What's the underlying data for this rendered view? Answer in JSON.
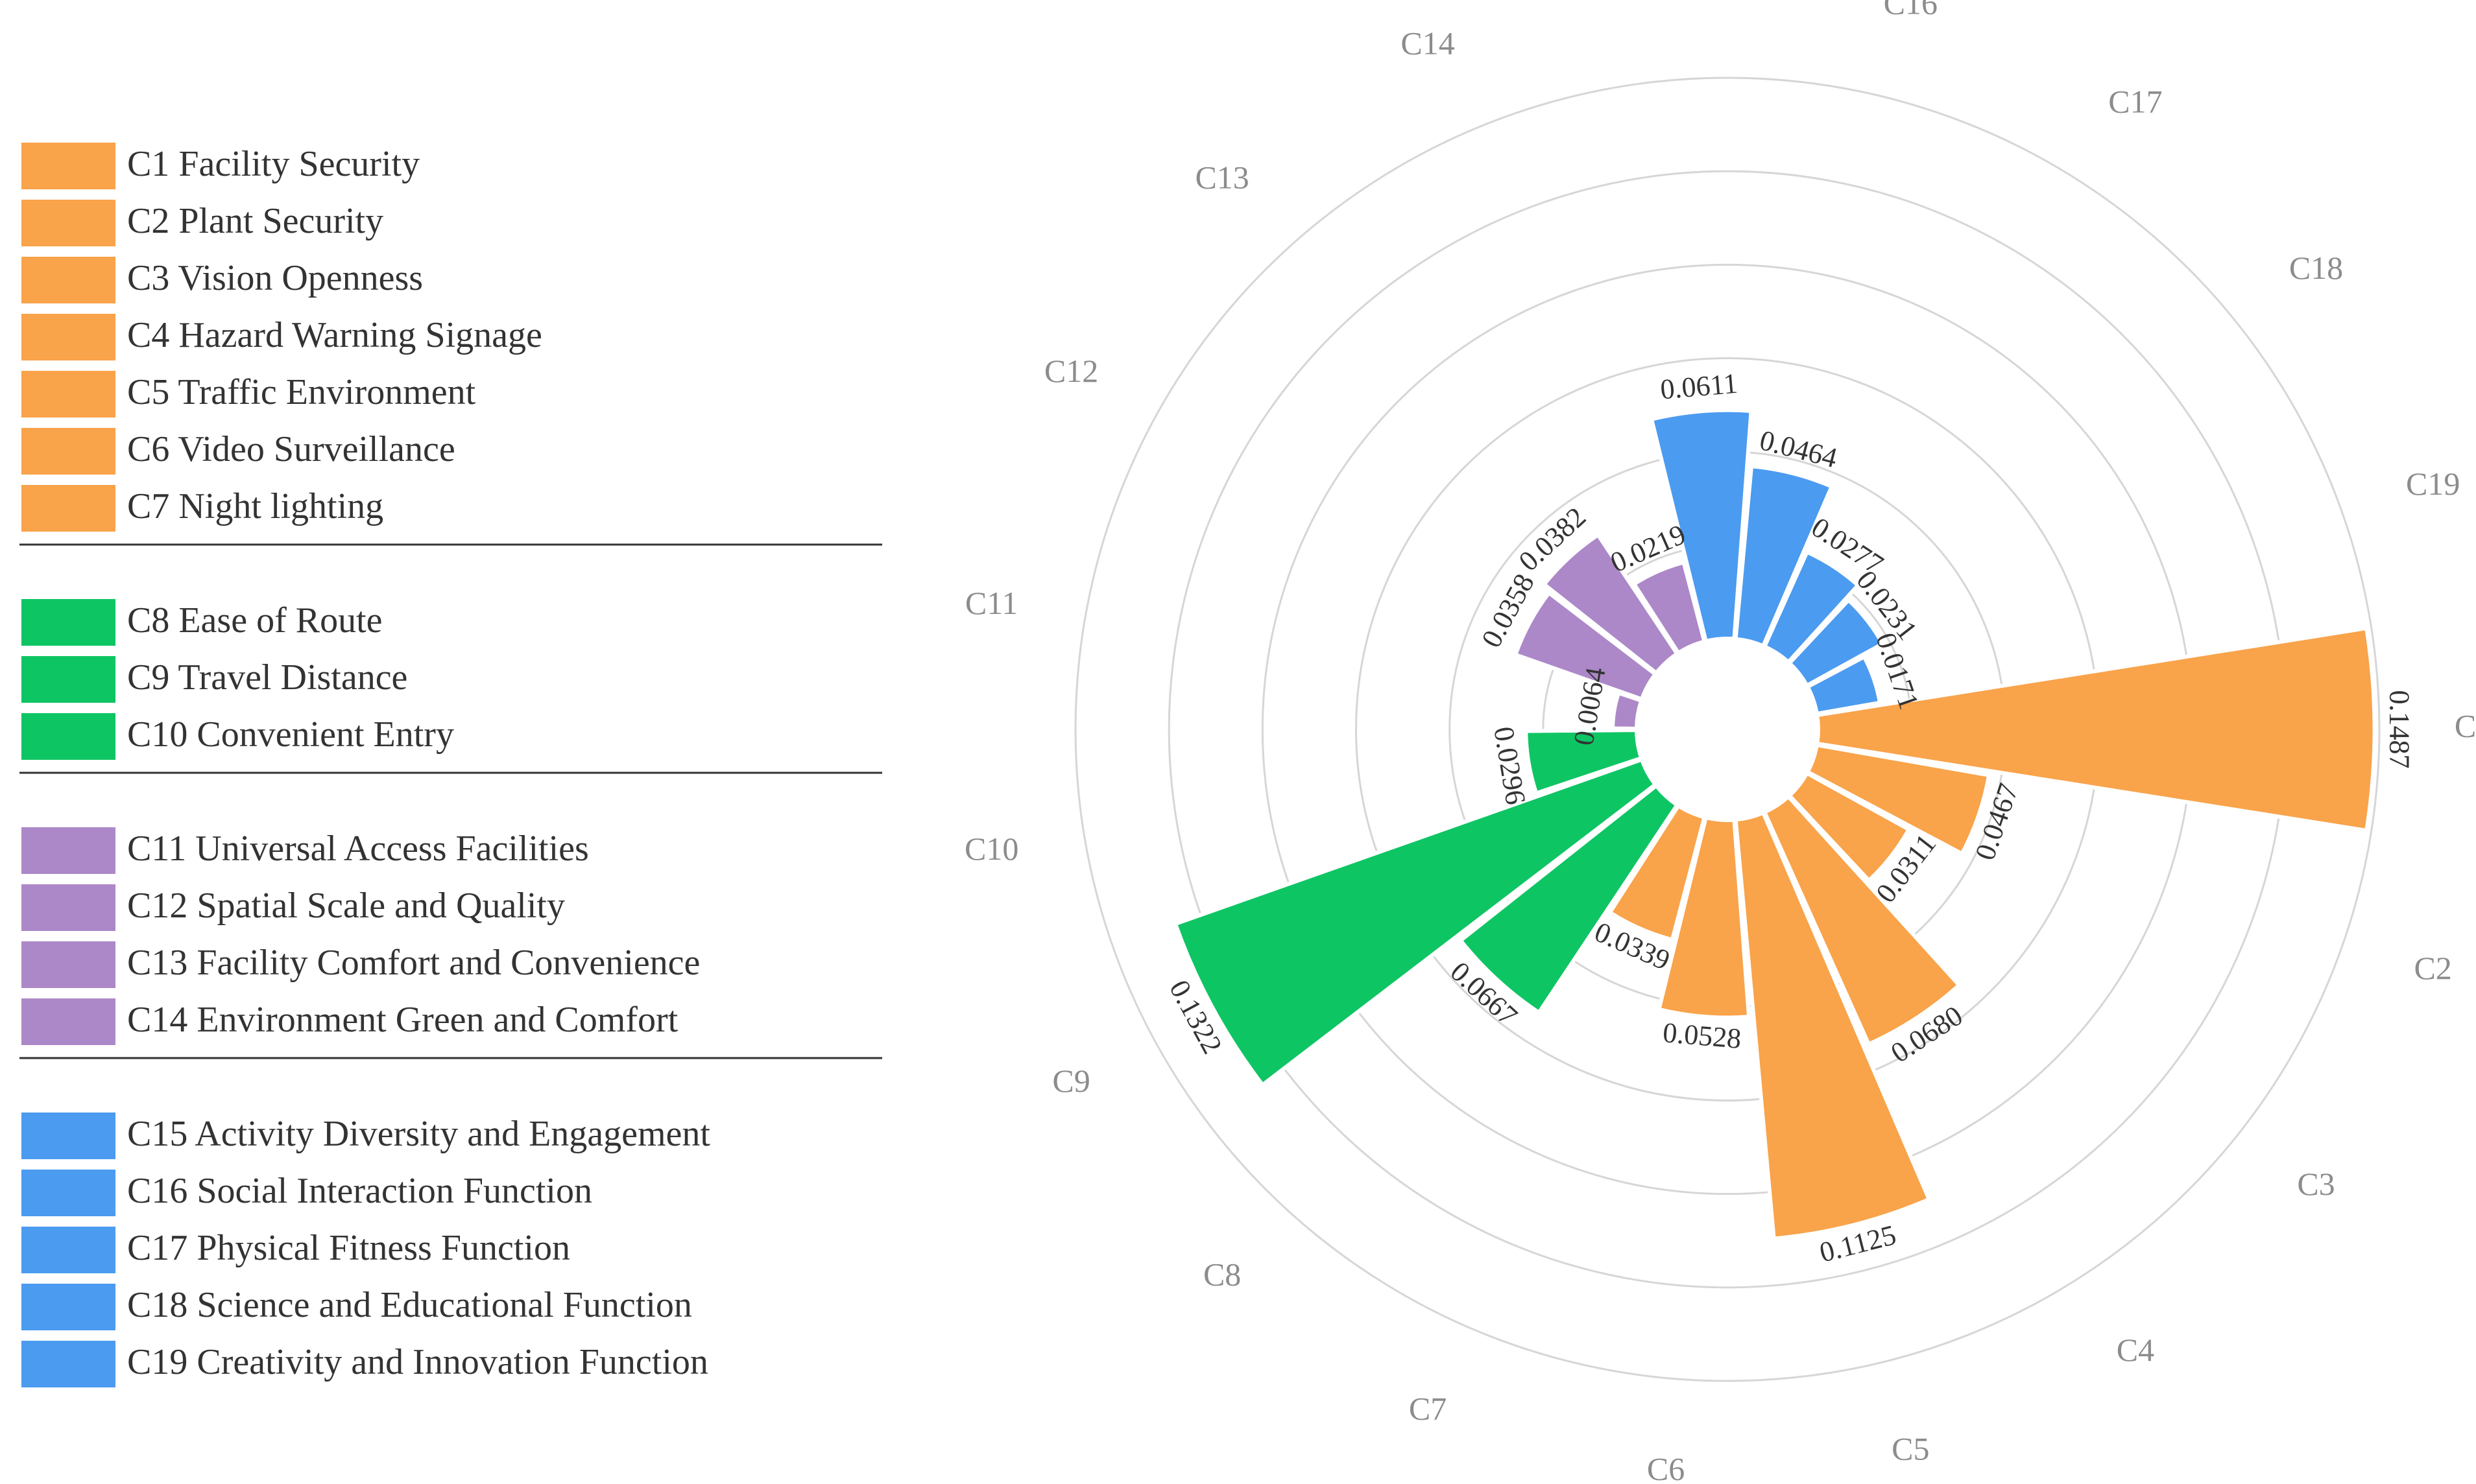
{
  "chart_data": {
    "type": "polar-bar",
    "title": "",
    "criteria": [
      {
        "id": "C1",
        "name": "C1 Facility Security",
        "value": 0.1487,
        "value_label": "0.1487",
        "group": "safety"
      },
      {
        "id": "C2",
        "name": "C2 Plant Security",
        "value": 0.0467,
        "value_label": "0.0467",
        "group": "safety"
      },
      {
        "id": "C3",
        "name": "C3 Vision Openness",
        "value": 0.0311,
        "value_label": "0.0311",
        "group": "safety"
      },
      {
        "id": "C4",
        "name": "C4 Hazard Warning Signage",
        "value": 0.068,
        "value_label": "0.0680",
        "group": "safety"
      },
      {
        "id": "C5",
        "name": "C5 Traffic Environment",
        "value": 0.1125,
        "value_label": "0.1125",
        "group": "safety"
      },
      {
        "id": "C6",
        "name": "C6 Video Surveillance",
        "value": 0.0528,
        "value_label": "0.0528",
        "group": "safety"
      },
      {
        "id": "C7",
        "name": "C7 Night  lighting",
        "value": 0.0339,
        "value_label": "0.0339",
        "group": "safety"
      },
      {
        "id": "C8",
        "name": "C8 Ease of Route",
        "value": 0.0667,
        "value_label": "0.0667",
        "group": "accessibility"
      },
      {
        "id": "C9",
        "name": "C9 Travel Distance",
        "value": 0.1322,
        "value_label": "0.1322",
        "group": "accessibility"
      },
      {
        "id": "C10",
        "name": "C10 Convenient Entry",
        "value": 0.0296,
        "value_label": "0.0296",
        "group": "accessibility"
      },
      {
        "id": "C11",
        "name": "C11 Universal Access Facilities",
        "value": 0.0064,
        "value_label": "0.0064",
        "group": "comfort"
      },
      {
        "id": "C12",
        "name": "C12 Spatial Scale and Quality",
        "value": 0.0358,
        "value_label": "0.0358",
        "group": "comfort"
      },
      {
        "id": "C13",
        "name": "C13  Facility Comfort and Convenience",
        "value": 0.0382,
        "value_label": "0.0382",
        "group": "comfort"
      },
      {
        "id": "C14",
        "name": "C14 Environment Green and Comfort",
        "value": 0.0219,
        "value_label": "0.0219",
        "group": "comfort"
      },
      {
        "id": "C15",
        "name": "C15 Activity Diversity and Engagement",
        "value": 0.0611,
        "value_label": "0.0611",
        "group": "function"
      },
      {
        "id": "C16",
        "name": "C16 Social Interaction Function",
        "value": 0.0464,
        "value_label": "0.0464",
        "group": "function"
      },
      {
        "id": "C17",
        "name": "C17 Physical Fitness Function",
        "value": 0.0277,
        "value_label": "0.0277",
        "group": "function"
      },
      {
        "id": "C18",
        "name": "C18 Science and Educational Function",
        "value": 0.0231,
        "value_label": "0.0231",
        "group": "function"
      },
      {
        "id": "C19",
        "name": "C19 Creativity and Innovation Function",
        "value": 0.0171,
        "value_label": "0.0171",
        "group": "function"
      }
    ],
    "groups": {
      "safety": {
        "color": "#F9A34A"
      },
      "accessibility": {
        "color": "#0EC564"
      },
      "comfort": {
        "color": "#AC88C8"
      },
      "function": {
        "color": "#4B9BF0"
      }
    },
    "radial_range": [
      0,
      0.15
    ],
    "grid_rings": [
      0.025,
      0.05,
      0.075,
      0.1,
      0.125,
      0.15
    ],
    "legend_position": "left",
    "grid": true
  }
}
